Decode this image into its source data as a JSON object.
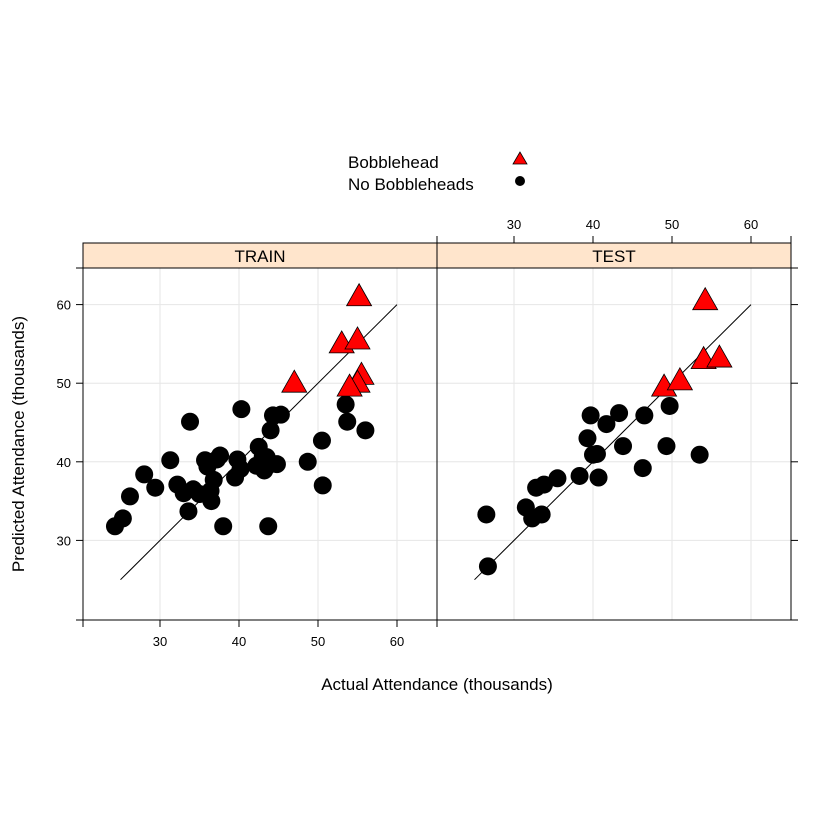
{
  "chart_data": {
    "type": "scatter",
    "xlabel": "Actual Attendance (thousands)",
    "ylabel": "Predicted Attendance (thousands)",
    "xlim": [
      20,
      65
    ],
    "ylim": [
      20,
      65
    ],
    "x_ticks": [
      30,
      40,
      50,
      60
    ],
    "y_ticks": [
      30,
      40,
      50,
      60
    ],
    "grid": true,
    "legend_position": "top-center",
    "colors": {
      "bobblehead": "#ff0000",
      "no_bobblehead": "#000000",
      "strip": "#ffe5cc"
    },
    "legend": [
      {
        "label": "Bobblehead",
        "symbol": "triangle",
        "color": "#ff0000"
      },
      {
        "label": "No Bobbleheads",
        "symbol": "circle",
        "color": "#000000"
      }
    ],
    "reference_line": [
      [
        25,
        25
      ],
      [
        60,
        60
      ]
    ],
    "panels": [
      {
        "strip": "TRAIN",
        "series": [
          {
            "name": "Bobblehead",
            "points": [
              [
                47.0,
                50.0
              ],
              [
                53.0,
                55.0
              ],
              [
                55.0,
                55.5
              ],
              [
                55.2,
                61.0
              ],
              [
                55.5,
                51.0
              ],
              [
                55.0,
                50.0
              ],
              [
                54.0,
                49.5
              ]
            ]
          },
          {
            "name": "No Bobbleheads",
            "points": [
              [
                24.3,
                31.8
              ],
              [
                25.3,
                32.8
              ],
              [
                26.2,
                35.6
              ],
              [
                28.0,
                38.4
              ],
              [
                29.4,
                36.7
              ],
              [
                31.3,
                40.2
              ],
              [
                32.2,
                37.1
              ],
              [
                33.0,
                36.0
              ],
              [
                33.6,
                33.7
              ],
              [
                33.8,
                45.1
              ],
              [
                34.2,
                36.5
              ],
              [
                35.0,
                35.9
              ],
              [
                35.7,
                40.2
              ],
              [
                36.0,
                39.4
              ],
              [
                36.4,
                36.3
              ],
              [
                36.5,
                35.0
              ],
              [
                36.8,
                37.7
              ],
              [
                37.2,
                40.3
              ],
              [
                37.6,
                40.8
              ],
              [
                38.0,
                31.8
              ],
              [
                39.5,
                38.0
              ],
              [
                39.8,
                40.3
              ],
              [
                40.2,
                39.1
              ],
              [
                40.3,
                46.7
              ],
              [
                42.2,
                39.5
              ],
              [
                42.5,
                41.9
              ],
              [
                43.0,
                40.6
              ],
              [
                43.2,
                38.9
              ],
              [
                43.5,
                40.6
              ],
              [
                43.7,
                31.8
              ],
              [
                44.0,
                44.0
              ],
              [
                44.0,
                39.7
              ],
              [
                44.3,
                45.9
              ],
              [
                45.3,
                46.0
              ],
              [
                48.7,
                40.0
              ],
              [
                50.5,
                42.7
              ],
              [
                50.6,
                37.0
              ],
              [
                53.5,
                47.3
              ],
              [
                53.7,
                45.1
              ],
              [
                56.0,
                44.0
              ],
              [
                44.8,
                39.7
              ]
            ]
          }
        ]
      },
      {
        "strip": "TEST",
        "series": [
          {
            "name": "Bobblehead",
            "points": [
              [
                49.0,
                49.5
              ],
              [
                51.0,
                50.3
              ],
              [
                54.0,
                53.0
              ],
              [
                54.2,
                60.5
              ],
              [
                56.0,
                53.2
              ]
            ]
          },
          {
            "name": "No Bobbleheads",
            "points": [
              [
                26.5,
                33.3
              ],
              [
                26.7,
                26.7
              ],
              [
                31.5,
                34.2
              ],
              [
                32.3,
                32.8
              ],
              [
                32.8,
                36.7
              ],
              [
                33.5,
                33.3
              ],
              [
                33.8,
                37.1
              ],
              [
                35.5,
                37.9
              ],
              [
                38.3,
                38.2
              ],
              [
                39.3,
                43.0
              ],
              [
                39.7,
                45.9
              ],
              [
                40.0,
                40.9
              ],
              [
                40.5,
                41.0
              ],
              [
                40.7,
                38.0
              ],
              [
                41.7,
                44.8
              ],
              [
                43.3,
                46.2
              ],
              [
                43.8,
                42.0
              ],
              [
                46.3,
                39.2
              ],
              [
                46.5,
                45.9
              ],
              [
                49.3,
                42.0
              ],
              [
                49.7,
                47.1
              ],
              [
                53.5,
                40.9
              ]
            ]
          }
        ]
      }
    ]
  }
}
